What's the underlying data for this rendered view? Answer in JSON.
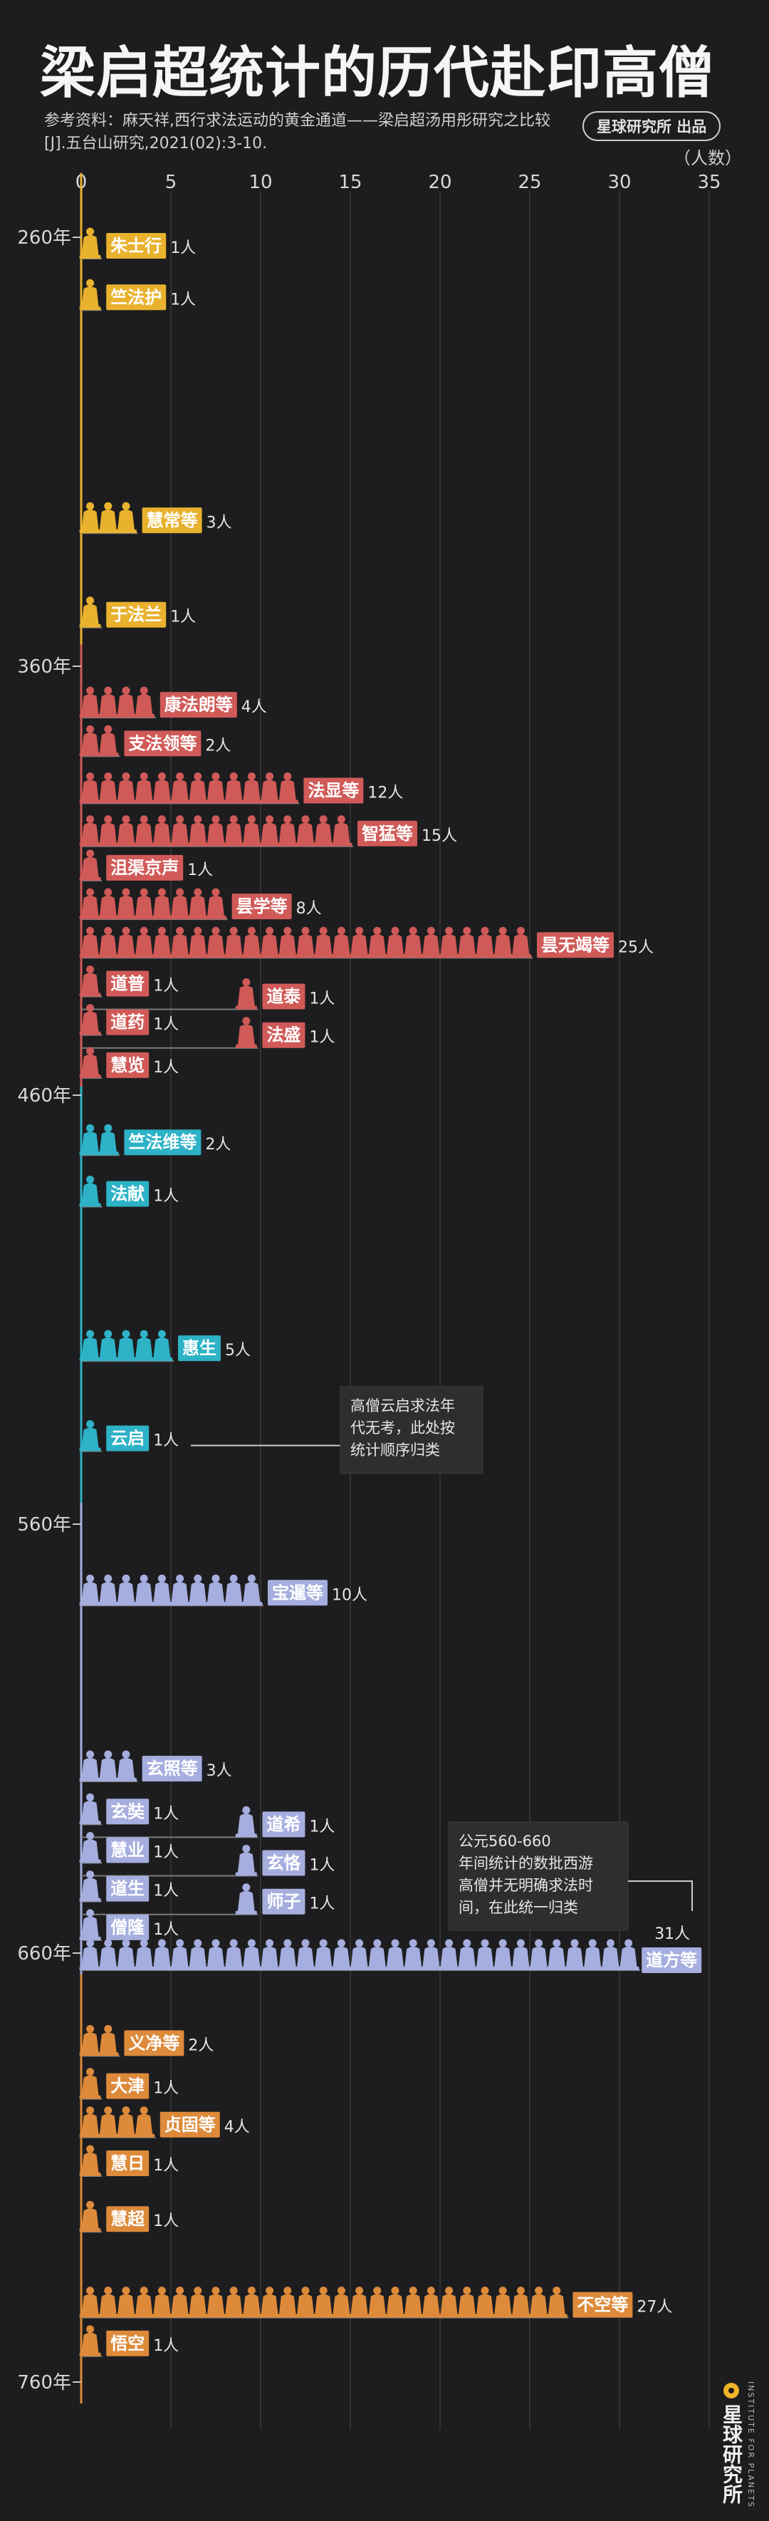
{
  "title": "梁启超统计的历代赴印高僧",
  "source": "参考资料：麻天祥,西行求法运动的黄金通道——梁启超汤用彤研究之比较[J].五台山研究,2021(02):3-10.",
  "badge": "星球研究所 出品",
  "unit_label": "（人数）",
  "logo": {
    "cn": "星球研究所",
    "en": "INSTITUTE FOR PLANETS"
  },
  "colors": {
    "yellow": "#e9b22e",
    "red": "#d05a57",
    "teal": "#2db2c6",
    "lavender": "#a5aede",
    "orange": "#dd8a3a",
    "axis": "#d8d8d8",
    "grid": "#3a3a3a"
  },
  "chart_data": {
    "type": "bar",
    "xlim": [
      0,
      35
    ],
    "xticks": [
      0,
      5,
      10,
      15,
      20,
      25,
      30,
      35
    ],
    "xlabel": "（人数）",
    "ylim": [
      245,
      765
    ],
    "yticks": [
      "260年",
      "360年",
      "460年",
      "560年",
      "660年",
      "760年"
    ],
    "ytick_values": [
      260,
      360,
      460,
      560,
      660,
      760
    ],
    "grid": true,
    "series": [
      {
        "label": "朱士行",
        "value": 1,
        "count": "1人",
        "year": 261,
        "color": "yellow"
      },
      {
        "label": "竺法护",
        "value": 1,
        "count": "1人",
        "year": 273,
        "color": "yellow"
      },
      {
        "label": "慧常等",
        "value": 3,
        "count": "3人",
        "year": 325,
        "color": "yellow"
      },
      {
        "label": "于法兰",
        "value": 1,
        "count": "1人",
        "year": 347,
        "color": "yellow"
      },
      {
        "label": "康法朗等",
        "value": 4,
        "count": "4人",
        "year": 368,
        "color": "red"
      },
      {
        "label": "支法领等",
        "value": 2,
        "count": "2人",
        "year": 377,
        "color": "red"
      },
      {
        "label": "法显等",
        "value": 12,
        "count": "12人",
        "year": 388,
        "color": "red"
      },
      {
        "label": "智猛等",
        "value": 15,
        "count": "15人",
        "year": 398,
        "color": "red"
      },
      {
        "label": "沮渠京声",
        "value": 1,
        "count": "1人",
        "year": 406,
        "color": "red"
      },
      {
        "label": "昙学等",
        "value": 8,
        "count": "8人",
        "year": 415,
        "color": "red"
      },
      {
        "label": "昙无竭等",
        "value": 25,
        "count": "25人",
        "year": 424,
        "color": "red"
      },
      {
        "label": "道普",
        "value": 1,
        "count": "1人",
        "year": 433,
        "color": "red"
      },
      {
        "label": "道泰",
        "value": 1,
        "count": "1人",
        "year": 436,
        "color": "red",
        "side": true
      },
      {
        "label": "道药",
        "value": 1,
        "count": "1人",
        "year": 442,
        "color": "red"
      },
      {
        "label": "法盛",
        "value": 1,
        "count": "1人",
        "year": 445,
        "color": "red",
        "side": true
      },
      {
        "label": "慧览",
        "value": 1,
        "count": "1人",
        "year": 452,
        "color": "red"
      },
      {
        "label": "竺法维等",
        "value": 2,
        "count": "2人",
        "year": 470,
        "color": "teal"
      },
      {
        "label": "法献",
        "value": 1,
        "count": "1人",
        "year": 482,
        "color": "teal"
      },
      {
        "label": "惠生",
        "value": 5,
        "count": "5人",
        "year": 518,
        "color": "teal"
      },
      {
        "label": "云启",
        "value": 1,
        "count": "1人",
        "year": 539,
        "color": "teal"
      },
      {
        "label": "宝暹等",
        "value": 10,
        "count": "10人",
        "year": 575,
        "color": "lavender"
      },
      {
        "label": "玄照等",
        "value": 3,
        "count": "3人",
        "year": 616,
        "color": "lavender"
      },
      {
        "label": "玄奘",
        "value": 1,
        "count": "1人",
        "year": 626,
        "color": "lavender"
      },
      {
        "label": "道希",
        "value": 1,
        "count": "1人",
        "year": 629,
        "color": "lavender",
        "side": true
      },
      {
        "label": "慧业",
        "value": 1,
        "count": "1人",
        "year": 635,
        "color": "lavender"
      },
      {
        "label": "玄恪",
        "value": 1,
        "count": "1人",
        "year": 638,
        "color": "lavender",
        "side": true
      },
      {
        "label": "道生",
        "value": 1,
        "count": "1人",
        "year": 644,
        "color": "lavender"
      },
      {
        "label": "师子",
        "value": 1,
        "count": "1人",
        "year": 647,
        "color": "lavender",
        "side": true
      },
      {
        "label": "僧隆",
        "value": 1,
        "count": "1人",
        "year": 653,
        "color": "lavender"
      },
      {
        "label": "道方等",
        "value": 31,
        "count": "31人",
        "year": 660,
        "color": "lavender",
        "labelRight": true
      },
      {
        "label": "义净等",
        "value": 2,
        "count": "2人",
        "year": 680,
        "color": "orange"
      },
      {
        "label": "大津",
        "value": 1,
        "count": "1人",
        "year": 690,
        "color": "orange"
      },
      {
        "label": "贞固等",
        "value": 4,
        "count": "4人",
        "year": 699,
        "color": "orange"
      },
      {
        "label": "慧日",
        "value": 1,
        "count": "1人",
        "year": 708,
        "color": "orange"
      },
      {
        "label": "慧超",
        "value": 1,
        "count": "1人",
        "year": 721,
        "color": "orange"
      },
      {
        "label": "不空等",
        "value": 27,
        "count": "27人",
        "year": 741,
        "color": "orange"
      },
      {
        "label": "悟空",
        "value": 1,
        "count": "1人",
        "year": 750,
        "color": "orange"
      }
    ],
    "annotations": [
      {
        "text": "高僧云启求法年代无考，此处按统计顺序归类",
        "target": "云启"
      },
      {
        "text": "公元560-660年间统计的数批西游高僧并无明确求法时间，在此统一归类",
        "target": "道方等"
      }
    ]
  }
}
